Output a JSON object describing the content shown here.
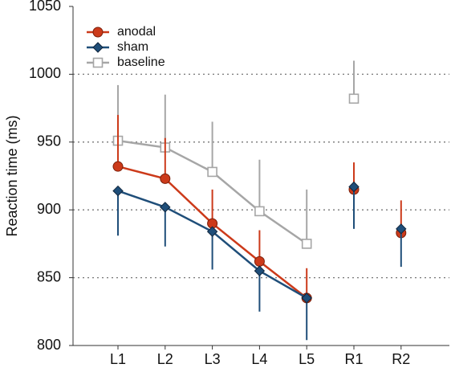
{
  "chart_data": {
    "type": "line",
    "ylabel": "Reaction time (ms)",
    "categories": [
      "L1",
      "L2",
      "L3",
      "L4",
      "L5",
      "R1",
      "R2"
    ],
    "line_groups": [
      [
        "L1",
        "L2",
        "L3",
        "L4",
        "L5"
      ],
      [
        "R1"
      ],
      [
        "R2"
      ]
    ],
    "series": [
      {
        "name": "baseline",
        "color": "#a6a6a6",
        "marker": "square",
        "error_direction": "up",
        "values": [
          951,
          946,
          928,
          899,
          875,
          982,
          null
        ],
        "errors": [
          41,
          39,
          37,
          38,
          40,
          28,
          null
        ]
      },
      {
        "name": "anodal",
        "color": "#cc3a1a",
        "marker": "circle",
        "error_direction": "up",
        "values": [
          932,
          923,
          890,
          862,
          835,
          915,
          883
        ],
        "errors": [
          38,
          30,
          25,
          23,
          22,
          20,
          24
        ]
      },
      {
        "name": "sham",
        "color": "#1f4e79",
        "marker": "diamond",
        "error_direction": "down",
        "values": [
          914,
          902,
          884,
          855,
          835,
          917,
          886
        ],
        "errors": [
          33,
          29,
          28,
          30,
          31,
          31,
          28
        ]
      }
    ],
    "legend_order": [
      1,
      2,
      0
    ],
    "ylim": [
      800,
      1050
    ],
    "yticks": [
      800,
      850,
      900,
      950,
      1000,
      1050
    ],
    "grid": true,
    "legend": "upper left"
  }
}
